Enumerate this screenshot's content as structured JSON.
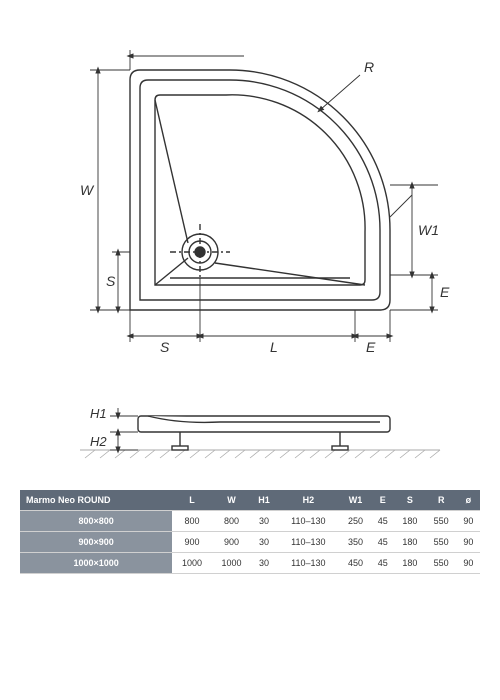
{
  "diagram": {
    "type": "engineering-drawing",
    "line_color": "#333333",
    "line_width": 1.4,
    "hatch_color": "#aaaaaa",
    "background": "#ffffff",
    "label_fontsize": 14,
    "label_font": "italic",
    "labels": {
      "W": "W",
      "S_v": "S",
      "S_h": "S",
      "L": "L",
      "E_h": "E",
      "E_v": "E",
      "W1": "W1",
      "R": "R",
      "H1": "H1",
      "H2": "H2"
    }
  },
  "table": {
    "header_bg": "#5f6a78",
    "rowheader_bg": "#8a939e",
    "header_color": "#ffffff",
    "grid_color": "#d0d0d0",
    "cell_color": "#333333",
    "fontsize": 9,
    "title": "Marmo Neo ROUND",
    "columns": [
      "L",
      "W",
      "H1",
      "H2",
      "W1",
      "E",
      "S",
      "R",
      "ø"
    ],
    "rows": [
      {
        "name": "800×800",
        "cells": [
          "800",
          "800",
          "30",
          "110–130",
          "250",
          "45",
          "180",
          "550",
          "90"
        ]
      },
      {
        "name": "900×900",
        "cells": [
          "900",
          "900",
          "30",
          "110–130",
          "350",
          "45",
          "180",
          "550",
          "90"
        ]
      },
      {
        "name": "1000×1000",
        "cells": [
          "1000",
          "1000",
          "30",
          "110–130",
          "450",
          "45",
          "180",
          "550",
          "90"
        ]
      }
    ]
  }
}
